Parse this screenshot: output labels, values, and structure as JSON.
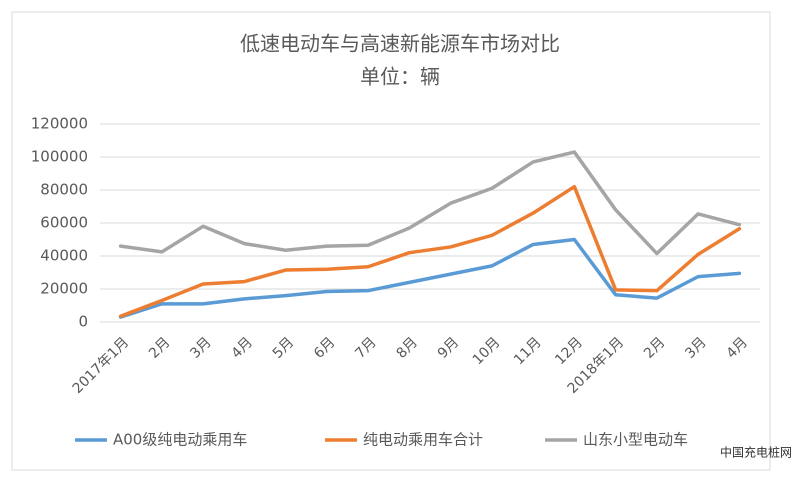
{
  "chart_data": {
    "type": "line",
    "title": "低速电动车与高速新能源车市场对比",
    "subtitle": "单位：辆",
    "categories": [
      "2017年1月",
      "2月",
      "3月",
      "4月",
      "5月",
      "6月",
      "7月",
      "8月",
      "9月",
      "10月",
      "11月",
      "12月",
      "2018年1月",
      "2月",
      "3月",
      "4月"
    ],
    "series": [
      {
        "name": "A00级纯电动乘用车",
        "color": "#5b9bd5",
        "values": [
          3000,
          11000,
          11000,
          14000,
          16000,
          18500,
          19000,
          24000,
          29000,
          34000,
          47000,
          50000,
          16500,
          14500,
          27500,
          29500
        ]
      },
      {
        "name": "纯电动乘用车合计",
        "color": "#ed7d31",
        "values": [
          3500,
          13000,
          23000,
          24500,
          31500,
          32000,
          33500,
          42000,
          45500,
          52500,
          66000,
          82000,
          19500,
          19000,
          41000,
          56500
        ]
      },
      {
        "name": "山东小型电动车",
        "color": "#a5a5a5",
        "values": [
          46000,
          42500,
          58000,
          47500,
          43500,
          46000,
          46500,
          57000,
          72000,
          81000,
          97000,
          103000,
          68000,
          41500,
          65500,
          59000
        ]
      }
    ],
    "ylim": [
      0,
      120000
    ],
    "yticks": [
      0,
      20000,
      40000,
      60000,
      80000,
      100000,
      120000
    ],
    "grid": true,
    "legend": "bottom",
    "watermark": "中国充电桩网"
  }
}
